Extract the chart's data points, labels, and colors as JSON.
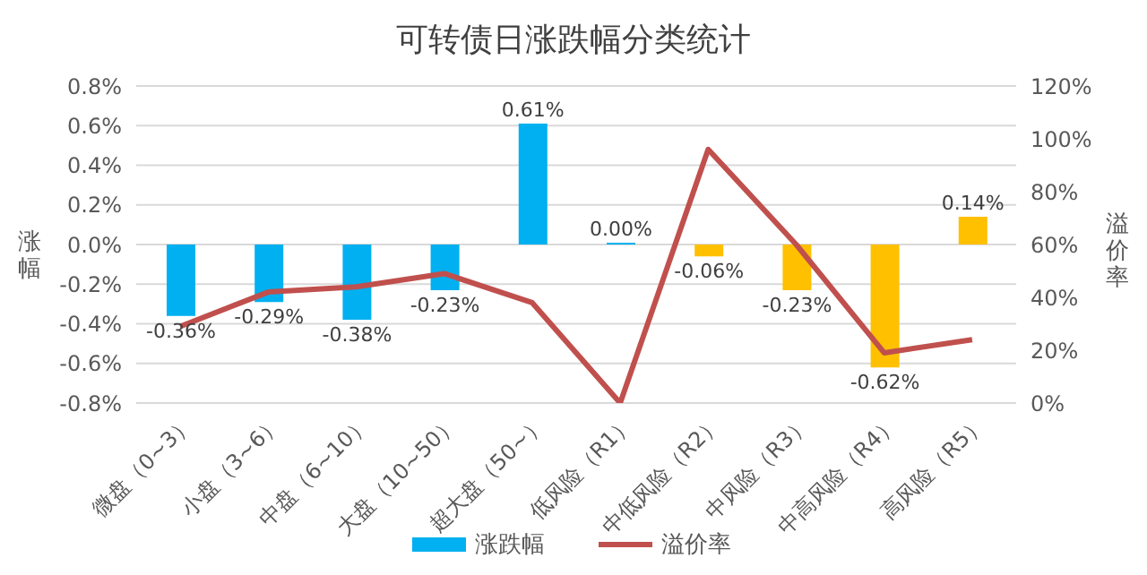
{
  "chart_data": {
    "type": "bar",
    "title": "可转债日涨跌幅分类统计",
    "ylabel": "涨幅",
    "y2label": "溢价率",
    "categories": [
      "微盘（0~3）",
      "小盘（3~6）",
      "中盘（6~10）",
      "大盘（10~50）",
      "超大盘（50~）",
      "低风险（R1）",
      "中低风险（R2）",
      "中风险（R3）",
      "中高风险（R4）",
      "高风险（R5）"
    ],
    "series": [
      {
        "name": "涨跌幅",
        "type": "bar",
        "color": "#00b0f0",
        "colors": [
          "#00b0f0",
          "#00b0f0",
          "#00b0f0",
          "#00b0f0",
          "#00b0f0",
          "#00b0f0",
          "#ffc000",
          "#ffc000",
          "#ffc000",
          "#ffc000"
        ],
        "values": [
          -0.36,
          -0.29,
          -0.38,
          -0.23,
          0.61,
          0.0,
          -0.06,
          -0.23,
          -0.62,
          0.14
        ],
        "value_labels": [
          "-0.36%",
          "-0.29%",
          "-0.38%",
          "-0.23%",
          "0.61%",
          "0.00%",
          "-0.06%",
          "-0.23%",
          "-0.62%",
          "0.14%"
        ]
      },
      {
        "name": "溢价率",
        "type": "line",
        "axis": "y2",
        "color": "#c0504d",
        "values": [
          29,
          42,
          44,
          49,
          38,
          0,
          96,
          60,
          19,
          24
        ]
      }
    ],
    "ylim": [
      -0.8,
      0.8
    ],
    "yticks": [
      {
        "value": -0.8,
        "label": "-0.8%"
      },
      {
        "value": -0.6,
        "label": "-0.6%"
      },
      {
        "value": -0.4,
        "label": "-0.4%"
      },
      {
        "value": -0.2,
        "label": "-0.2%"
      },
      {
        "value": 0,
        "label": "0.0%"
      },
      {
        "value": 0.2,
        "label": "0.2%"
      },
      {
        "value": 0.4,
        "label": "0.4%"
      },
      {
        "value": 0.6,
        "label": "0.6%"
      },
      {
        "value": 0.8,
        "label": "0.8%"
      }
    ],
    "y2lim": [
      0,
      120
    ],
    "y2ticks": [
      {
        "value": 0,
        "label": "0%"
      },
      {
        "value": 20,
        "label": "20%"
      },
      {
        "value": 40,
        "label": "40%"
      },
      {
        "value": 60,
        "label": "60%"
      },
      {
        "value": 80,
        "label": "80%"
      },
      {
        "value": 100,
        "label": "100%"
      },
      {
        "value": 120,
        "label": "120%"
      }
    ],
    "grid": "y",
    "legend": "bottom",
    "marker": "none",
    "line_style": "solid"
  }
}
